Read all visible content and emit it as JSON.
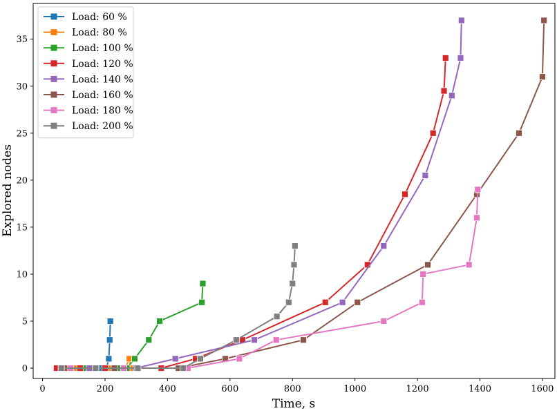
{
  "chart_data": {
    "type": "line",
    "title": "",
    "xlabel": "Time, s",
    "ylabel": "Explored nodes",
    "xlim": [
      -30,
      1640
    ],
    "ylim": [
      -1.1,
      38.8
    ],
    "xticks": [
      0,
      200,
      400,
      600,
      800,
      1000,
      1200,
      1400,
      1600
    ],
    "yticks": [
      0,
      5,
      10,
      15,
      20,
      25,
      30,
      35
    ],
    "grid": false,
    "legend_position": "top-left",
    "series": [
      {
        "name": "Load: 60 %",
        "color": "#1f77b4",
        "points": [
          [
            45,
            0
          ],
          [
            75,
            0
          ],
          [
            100,
            0
          ],
          [
            130,
            0
          ],
          [
            160,
            0
          ],
          [
            190,
            0
          ],
          [
            205,
            0
          ],
          [
            212,
            1
          ],
          [
            215,
            3
          ],
          [
            217,
            5
          ]
        ]
      },
      {
        "name": "Load: 80 %",
        "color": "#ff7f0e",
        "points": [
          [
            45,
            0
          ],
          [
            100,
            0
          ],
          [
            160,
            0
          ],
          [
            210,
            0
          ],
          [
            240,
            0
          ],
          [
            265,
            0
          ],
          [
            278,
            1
          ],
          [
            282,
            0
          ]
        ]
      },
      {
        "name": "Load: 100 %",
        "color": "#2ca02c",
        "points": [
          [
            45,
            0
          ],
          [
            130,
            0
          ],
          [
            240,
            0
          ],
          [
            270,
            0
          ],
          [
            295,
            1
          ],
          [
            340,
            3
          ],
          [
            375,
            5
          ],
          [
            510,
            7
          ],
          [
            513,
            9
          ]
        ]
      },
      {
        "name": "Load: 120 %",
        "color": "#d62728",
        "points": [
          [
            45,
            0
          ],
          [
            120,
            0
          ],
          [
            200,
            0
          ],
          [
            300,
            0
          ],
          [
            380,
            0
          ],
          [
            490,
            1
          ],
          [
            640,
            3
          ],
          [
            905,
            7
          ],
          [
            1040,
            11
          ],
          [
            1160,
            18.5
          ],
          [
            1250,
            25
          ],
          [
            1285,
            29.5
          ],
          [
            1290,
            33
          ]
        ]
      },
      {
        "name": "Load: 140 %",
        "color": "#9467bd",
        "points": [
          [
            60,
            0
          ],
          [
            150,
            0
          ],
          [
            300,
            0
          ],
          [
            425,
            1
          ],
          [
            678,
            3
          ],
          [
            960,
            7
          ],
          [
            1092,
            13
          ],
          [
            1225,
            20.5
          ],
          [
            1310,
            29
          ],
          [
            1338,
            33
          ],
          [
            1341,
            37
          ]
        ]
      },
      {
        "name": "Load: 160 %",
        "color": "#8c564b",
        "points": [
          [
            75,
            0
          ],
          [
            230,
            0
          ],
          [
            435,
            0
          ],
          [
            585,
            1
          ],
          [
            835,
            3
          ],
          [
            1008,
            7
          ],
          [
            1233,
            11
          ],
          [
            1390,
            18.5
          ],
          [
            1525,
            25
          ],
          [
            1600,
            31
          ],
          [
            1605,
            37
          ]
        ]
      },
      {
        "name": "Load: 180 %",
        "color": "#e377c2",
        "points": [
          [
            90,
            0
          ],
          [
            260,
            0
          ],
          [
            465,
            0
          ],
          [
            630,
            1
          ],
          [
            748,
            3
          ],
          [
            1092,
            5
          ],
          [
            1215,
            7
          ],
          [
            1218,
            10
          ],
          [
            1365,
            11
          ],
          [
            1390,
            16
          ],
          [
            1393,
            19
          ]
        ]
      },
      {
        "name": "Load: 200 %",
        "color": "#7f7f7f",
        "points": [
          [
            60,
            0
          ],
          [
            170,
            0
          ],
          [
            305,
            0
          ],
          [
            450,
            0
          ],
          [
            505,
            1
          ],
          [
            620,
            3
          ],
          [
            750,
            5.5
          ],
          [
            788,
            7
          ],
          [
            800,
            9
          ],
          [
            805,
            11
          ],
          [
            808,
            13
          ]
        ]
      }
    ]
  }
}
